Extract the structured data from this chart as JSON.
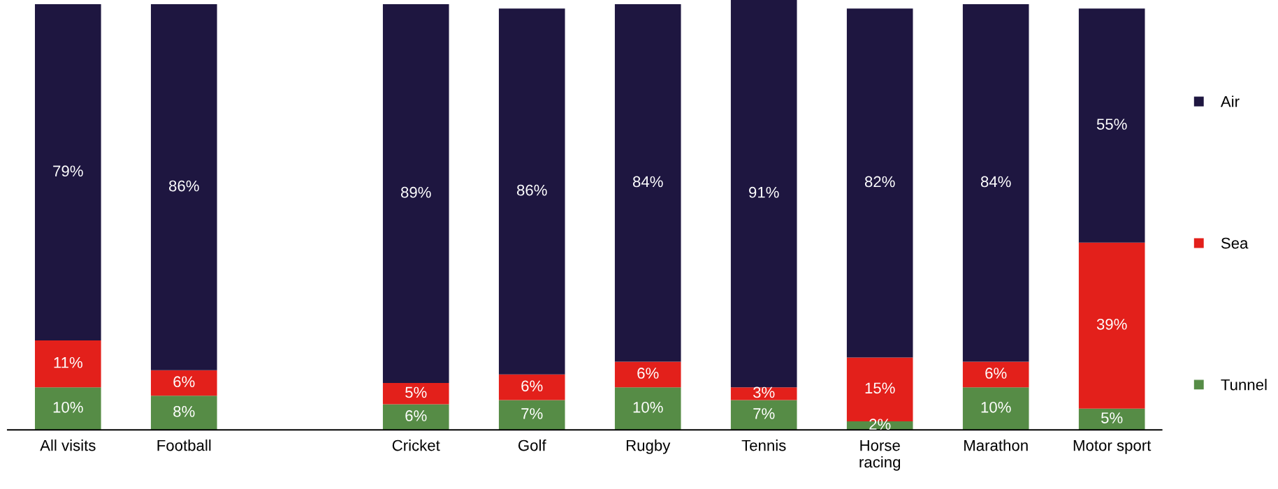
{
  "chart_data": {
    "type": "bar",
    "stacked": true,
    "legend": "right",
    "grid": false,
    "categories": [
      "All visits",
      "Football",
      null,
      "Cricket",
      "Golf",
      "Rugby",
      "Tennis",
      "Horse\nracing",
      "Marathon",
      "Motor sport"
    ],
    "series": [
      {
        "name": "Tunnel",
        "color": "#568c46",
        "values": [
          10,
          8,
          null,
          6,
          7,
          10,
          7,
          2,
          10,
          5
        ],
        "value_labels": [
          "10%",
          "8%",
          null,
          "6%",
          "7%",
          "10%",
          "7%",
          "2%",
          "10%",
          "5%"
        ]
      },
      {
        "name": "Sea",
        "color": "#e3201b",
        "values": [
          11,
          6,
          null,
          5,
          6,
          6,
          3,
          15,
          6,
          39
        ],
        "value_labels": [
          "11%",
          "6%",
          null,
          "5%",
          "6%",
          "6%",
          "3%",
          "15%",
          "6%",
          "39%"
        ]
      },
      {
        "name": "Air",
        "color": "#1e1640",
        "values": [
          79,
          86,
          null,
          89,
          86,
          84,
          91,
          82,
          84,
          55
        ],
        "value_labels": [
          "79%",
          "86%",
          null,
          "89%",
          "86%",
          "84%",
          "91%",
          "82%",
          "84%",
          "55%"
        ]
      }
    ]
  }
}
